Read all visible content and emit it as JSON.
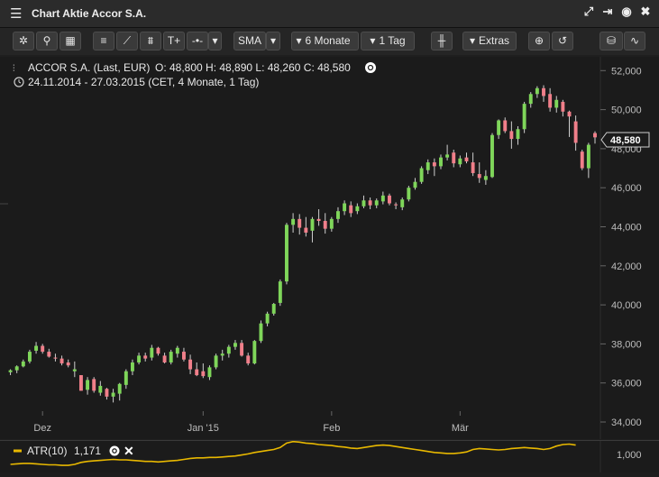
{
  "window": {
    "title": "Chart Aktie Accor S.A."
  },
  "toolbar": {
    "indicator": "SMA",
    "range": "6 Monate",
    "interval": "1 Tag",
    "extras": "Extras"
  },
  "colors": {
    "up": "#7fd65a",
    "down": "#f07f8a",
    "background": "#1b1b1b",
    "grid": "#333333",
    "atr": "#e8b800"
  },
  "chart_data": {
    "type": "candlestick",
    "instrument": "ACCOR S.A. (Last, EUR)",
    "ohlc_text": "O: 48,800  H: 48,890  L: 48,260  C: 48,580",
    "period_text": "24.11.2014 - 27.03.2015 (CET, 4 Monate, 1 Tag)",
    "last_label": "48,580",
    "ylim": [
      33500,
      53000
    ],
    "yticks": [
      34000,
      36000,
      38000,
      40000,
      42000,
      44000,
      46000,
      48000,
      50000,
      52000
    ],
    "ytick_labels": [
      "34,000",
      "36,000",
      "38,000",
      "40,000",
      "42,000",
      "44,000",
      "46,000",
      "48,000",
      "50,000",
      "52,000"
    ],
    "xtick_labels": [
      "Dez",
      "Jan '15",
      "Feb",
      "Mär"
    ],
    "xtick_indices": [
      5,
      30,
      50,
      70
    ],
    "ohlc": [
      [
        36550,
        36700,
        36400,
        36650
      ],
      [
        36650,
        36900,
        36500,
        36850
      ],
      [
        36850,
        37200,
        36800,
        37100
      ],
      [
        37100,
        37700,
        37000,
        37600
      ],
      [
        37650,
        38100,
        37500,
        37900
      ],
      [
        37900,
        38000,
        37500,
        37600
      ],
      [
        37600,
        37750,
        37300,
        37350
      ],
      [
        37300,
        37500,
        37100,
        37250
      ],
      [
        37250,
        37400,
        36900,
        37000
      ],
      [
        37050,
        37200,
        36800,
        36900
      ],
      [
        36600,
        37100,
        36300,
        36700
      ],
      [
        36400,
        36400,
        35600,
        35600
      ],
      [
        35650,
        36300,
        35400,
        36150
      ],
      [
        36200,
        36300,
        35500,
        35600
      ],
      [
        35500,
        36100,
        35350,
        35850
      ],
      [
        35700,
        35750,
        35150,
        35300
      ],
      [
        35300,
        35700,
        35000,
        35500
      ],
      [
        35450,
        36000,
        35100,
        35950
      ],
      [
        35900,
        36700,
        35700,
        36600
      ],
      [
        36600,
        37200,
        36400,
        37050
      ],
      [
        37050,
        37550,
        36950,
        37400
      ],
      [
        37400,
        37550,
        37100,
        37250
      ],
      [
        37300,
        37950,
        37150,
        37800
      ],
      [
        37800,
        37850,
        37400,
        37500
      ],
      [
        37400,
        37550,
        37000,
        37050
      ],
      [
        37050,
        37700,
        36950,
        37600
      ],
      [
        37500,
        37900,
        37300,
        37800
      ],
      [
        37600,
        37800,
        37100,
        37200
      ],
      [
        37200,
        37450,
        36450,
        36700
      ],
      [
        36700,
        37050,
        36350,
        36400
      ],
      [
        36600,
        37000,
        36250,
        36350
      ],
      [
        36300,
        36900,
        36150,
        36800
      ],
      [
        36800,
        37500,
        36700,
        37400
      ],
      [
        37400,
        37700,
        37150,
        37500
      ],
      [
        37500,
        37950,
        37300,
        37850
      ],
      [
        37850,
        38200,
        37700,
        38050
      ],
      [
        38050,
        38200,
        37350,
        37400
      ],
      [
        37400,
        37550,
        36900,
        37000
      ],
      [
        37000,
        38200,
        36950,
        38150
      ],
      [
        38150,
        39200,
        38050,
        39050
      ],
      [
        39050,
        39650,
        38900,
        39550
      ],
      [
        39550,
        40100,
        39450,
        40050
      ],
      [
        40100,
        41300,
        39950,
        41200
      ],
      [
        41200,
        44200,
        41050,
        44100
      ],
      [
        44100,
        44700,
        43700,
        44400
      ],
      [
        44400,
        44650,
        43600,
        43950
      ],
      [
        43950,
        44500,
        43500,
        43700
      ],
      [
        43800,
        44500,
        43200,
        44400
      ],
      [
        44400,
        44900,
        44050,
        44300
      ],
      [
        44300,
        44700,
        43650,
        43900
      ],
      [
        43900,
        44500,
        43750,
        44400
      ],
      [
        44400,
        45000,
        44200,
        44800
      ],
      [
        44800,
        45350,
        44600,
        45200
      ],
      [
        45100,
        45300,
        44500,
        44700
      ],
      [
        44800,
        45200,
        44650,
        45050
      ],
      [
        45050,
        45600,
        44950,
        45350
      ],
      [
        45350,
        45500,
        44900,
        45100
      ],
      [
        45100,
        45450,
        44950,
        45350
      ],
      [
        45300,
        45800,
        45150,
        45600
      ],
      [
        45600,
        45700,
        45100,
        45200
      ],
      [
        45150,
        45250,
        44900,
        45100
      ],
      [
        45000,
        45500,
        44850,
        45400
      ],
      [
        45400,
        46100,
        45300,
        46000
      ],
      [
        46000,
        46500,
        45900,
        46300
      ],
      [
        46300,
        47100,
        46200,
        47000
      ],
      [
        46900,
        47450,
        46700,
        47300
      ],
      [
        47300,
        47500,
        46600,
        47100
      ],
      [
        47100,
        47700,
        46950,
        47550
      ],
      [
        47550,
        48200,
        47400,
        47700
      ],
      [
        47800,
        47950,
        47050,
        47250
      ],
      [
        47200,
        47650,
        47050,
        47500
      ],
      [
        47550,
        47800,
        47250,
        47350
      ],
      [
        47300,
        47800,
        46600,
        46750
      ],
      [
        46700,
        47300,
        46250,
        46500
      ],
      [
        46400,
        46900,
        46150,
        46600
      ],
      [
        46550,
        48800,
        46500,
        48700
      ],
      [
        48700,
        49500,
        48500,
        49450
      ],
      [
        49450,
        49600,
        48800,
        48900
      ],
      [
        48900,
        49400,
        48000,
        48500
      ],
      [
        48500,
        49150,
        48200,
        49000
      ],
      [
        49000,
        50400,
        48800,
        50300
      ],
      [
        50300,
        50900,
        50100,
        50800
      ],
      [
        50800,
        51200,
        50600,
        51100
      ],
      [
        51100,
        51250,
        50400,
        50700
      ],
      [
        50800,
        51100,
        49900,
        50100
      ],
      [
        50100,
        50700,
        49850,
        50500
      ],
      [
        50400,
        50500,
        49650,
        49900
      ],
      [
        49900,
        49950,
        48600,
        49650
      ],
      [
        49400,
        49700,
        47900,
        48300
      ],
      [
        47850,
        47950,
        46900,
        47000
      ],
      [
        47000,
        48300,
        46500,
        48200
      ],
      [
        48800,
        48890,
        48260,
        48580
      ]
    ]
  },
  "atr": {
    "label": "ATR(10)",
    "value": "1,171",
    "axis_label": "1,000",
    "values": [
      0.8,
      0.81,
      0.82,
      0.82,
      0.81,
      0.8,
      0.79,
      0.79,
      0.78,
      0.78,
      0.8,
      0.84,
      0.86,
      0.87,
      0.88,
      0.89,
      0.9,
      0.89,
      0.89,
      0.88,
      0.87,
      0.86,
      0.86,
      0.85,
      0.86,
      0.87,
      0.88,
      0.9,
      0.92,
      0.93,
      0.93,
      0.94,
      0.94,
      0.95,
      0.96,
      0.97,
      0.99,
      1.01,
      1.04,
      1.06,
      1.08,
      1.1,
      1.14,
      1.23,
      1.26,
      1.25,
      1.23,
      1.22,
      1.2,
      1.19,
      1.18,
      1.16,
      1.15,
      1.13,
      1.12,
      1.14,
      1.16,
      1.18,
      1.19,
      1.18,
      1.16,
      1.14,
      1.12,
      1.1,
      1.08,
      1.06,
      1.04,
      1.03,
      1.02,
      1.02,
      1.03,
      1.05,
      1.1,
      1.12,
      1.11,
      1.1,
      1.09,
      1.1,
      1.12,
      1.13,
      1.14,
      1.13,
      1.12,
      1.1,
      1.12,
      1.17,
      1.2,
      1.21,
      1.19
    ]
  }
}
